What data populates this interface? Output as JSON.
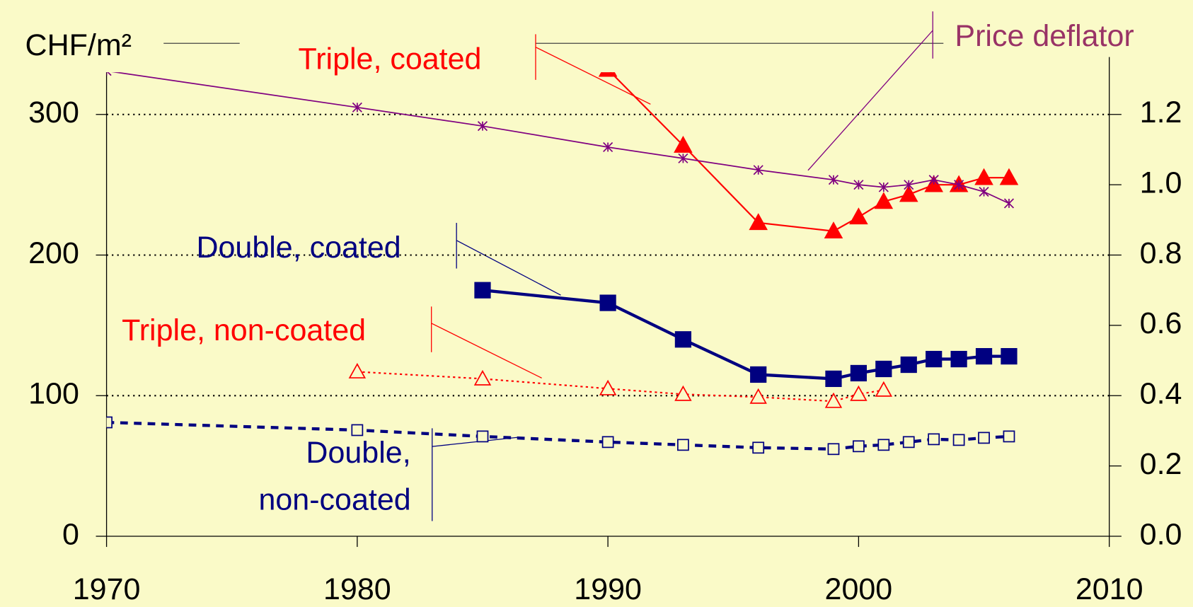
{
  "chart_data": {
    "type": "line",
    "y_label": "CHF/m²",
    "xlim": [
      1970,
      2010
    ],
    "xticks": [
      1970,
      1980,
      1990,
      2000,
      2010
    ],
    "ylim": [
      0,
      330
    ],
    "yticks": [
      0,
      100,
      200,
      300
    ],
    "y2lim": [
      0,
      1.32
    ],
    "y2ticks": [
      {
        "value": 0,
        "label": "0.0"
      },
      0.2,
      0.4,
      0.6,
      0.8,
      {
        "value": 1,
        "label": "1.0"
      },
      1.2
    ],
    "grid": true,
    "series": [
      {
        "name": "Triple, coated",
        "color": "#ff0000",
        "x": [
          1990,
          1993,
          1996,
          1999,
          2000,
          2001,
          2002,
          2003,
          2004,
          2005,
          2006
        ],
        "values": [
          332,
          278,
          223,
          217,
          227,
          238,
          243,
          250,
          250,
          255,
          255
        ]
      },
      {
        "name": "Double, coated",
        "color": "#000080",
        "x": [
          1985,
          1990,
          1993,
          1996,
          1999,
          2000,
          2001,
          2002,
          2003,
          2004,
          2005,
          2006
        ],
        "values": [
          175,
          166,
          140,
          115,
          112,
          116,
          119,
          122,
          126,
          126,
          128,
          128
        ]
      },
      {
        "name": "Triple, non-coated",
        "color": "#ff0000",
        "x": [
          1980,
          1985,
          1990,
          1993,
          1996,
          1999,
          2000,
          2001
        ],
        "values": [
          117,
          112,
          105,
          101,
          99,
          96,
          101,
          104
        ]
      },
      {
        "name": "Double, non-coated",
        "color": "#000080",
        "x": [
          1970,
          1980,
          1985,
          1990,
          1993,
          1996,
          1999,
          2000,
          2001,
          2002,
          2003,
          2004,
          2005,
          2006
        ],
        "values": [
          81,
          75.5,
          71,
          67,
          65,
          63,
          62,
          64,
          65,
          67,
          69,
          68.5,
          70,
          71
        ]
      },
      {
        "name": "Price deflator",
        "color": "#800080",
        "axis": "y2",
        "x": [
          1970,
          1980,
          1985,
          1990,
          1993,
          1996,
          1999,
          2000,
          2001,
          2002,
          2003,
          2004,
          2005,
          2006
        ],
        "values": [
          1.324,
          1.22,
          1.167,
          1.107,
          1.075,
          1.042,
          1.014,
          1.0,
          0.993,
          1.0,
          1.014,
          1.0,
          0.98,
          0.947
        ]
      }
    ]
  }
}
